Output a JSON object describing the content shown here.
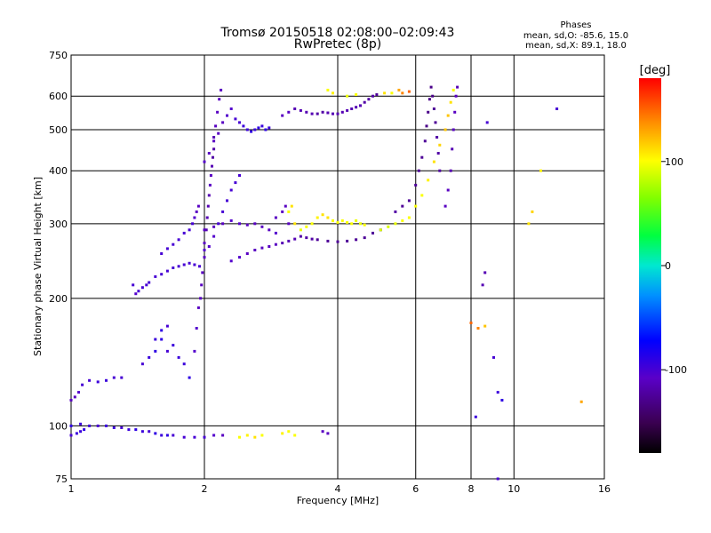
{
  "title": "Tromsø 20150518 02:08:00–02:09:43",
  "subtitle": "RwPretec (8p)",
  "stats": {
    "heading": "Phases",
    "line_o": "mean, sd,O: -85.6, 15.0",
    "line_x": "mean, sd,X: 89.1, 18.0"
  },
  "xlabel": "Frequency [MHz]",
  "ylabel": "Stationary phase Virtual Height [km]",
  "colorbar": {
    "label": "[deg]",
    "ticks": [
      {
        "value": 100,
        "label": "100"
      },
      {
        "value": 0,
        "label": "0"
      },
      {
        "value": -100,
        "label": "-100"
      }
    ],
    "range": [
      -180,
      180
    ]
  },
  "chart_data": {
    "type": "scatter",
    "x_scale": "log2",
    "y_scale": "log",
    "xlim": [
      1,
      16
    ],
    "ylim": [
      75,
      750
    ],
    "x_ticks": [
      {
        "value": 1,
        "label": "1"
      },
      {
        "value": 2,
        "label": "2"
      },
      {
        "value": 4,
        "label": "4"
      },
      {
        "value": 6,
        "label": "6"
      },
      {
        "value": 8,
        "label": "8"
      },
      {
        "value": 10,
        "label": "10"
      },
      {
        "value": 16,
        "label": "16"
      }
    ],
    "y_ticks": [
      {
        "value": 75,
        "label": "75"
      },
      {
        "value": 100,
        "label": "100"
      },
      {
        "value": 200,
        "label": "200"
      },
      {
        "value": 300,
        "label": "300"
      },
      {
        "value": 400,
        "label": "400"
      },
      {
        "value": 500,
        "label": "500"
      },
      {
        "value": 600,
        "label": "600"
      },
      {
        "value": 750,
        "label": "750"
      }
    ],
    "grid": true,
    "color_scale": "phase [deg], rainbow from black (-180) through blue, cyan, green, yellow to red (180)",
    "points": [
      [
        1.0,
        115,
        -110
      ],
      [
        1.02,
        117,
        -110
      ],
      [
        1.04,
        120,
        -105
      ],
      [
        1.06,
        125,
        -100
      ],
      [
        1.1,
        128,
        -100
      ],
      [
        1.15,
        127,
        -95
      ],
      [
        1.2,
        128,
        -95
      ],
      [
        1.25,
        130,
        -100
      ],
      [
        1.3,
        130,
        -100
      ],
      [
        1.0,
        100,
        -90
      ],
      [
        1.05,
        101,
        -95
      ],
      [
        1.1,
        100,
        -95
      ],
      [
        1.15,
        100,
        -100
      ],
      [
        1.2,
        100,
        -95
      ],
      [
        1.25,
        99,
        -95
      ],
      [
        1.3,
        99,
        -100
      ],
      [
        1.35,
        98,
        -95
      ],
      [
        1.4,
        98,
        -90
      ],
      [
        1.45,
        97,
        -95
      ],
      [
        1.5,
        97,
        -100
      ],
      [
        1.55,
        96,
        -90
      ],
      [
        1.6,
        95,
        -95
      ],
      [
        1.65,
        95,
        -90
      ],
      [
        1.7,
        95,
        -100
      ],
      [
        1.8,
        94,
        -100
      ],
      [
        1.9,
        94,
        -100
      ],
      [
        2.0,
        94,
        -100
      ],
      [
        1.0,
        95,
        -100
      ],
      [
        1.03,
        96,
        -95
      ],
      [
        1.05,
        97,
        -95
      ],
      [
        1.07,
        98,
        -90
      ],
      [
        1.45,
        140,
        -100
      ],
      [
        1.5,
        145,
        -95
      ],
      [
        1.55,
        150,
        -90
      ],
      [
        1.6,
        160,
        -90
      ],
      [
        1.65,
        150,
        -100
      ],
      [
        1.7,
        155,
        -95
      ],
      [
        1.75,
        145,
        -95
      ],
      [
        1.8,
        140,
        -95
      ],
      [
        1.85,
        130,
        -90
      ],
      [
        1.55,
        160,
        -95
      ],
      [
        1.6,
        168,
        -90
      ],
      [
        1.65,
        172,
        -100
      ],
      [
        1.38,
        215,
        -100
      ],
      [
        1.4,
        205,
        -105
      ],
      [
        1.42,
        208,
        -100
      ],
      [
        1.45,
        212,
        -100
      ],
      [
        1.48,
        215,
        -100
      ],
      [
        1.5,
        218,
        -100
      ],
      [
        1.55,
        225,
        -100
      ],
      [
        1.6,
        228,
        -100
      ],
      [
        1.65,
        232,
        -100
      ],
      [
        1.7,
        236,
        -100
      ],
      [
        1.75,
        238,
        -100
      ],
      [
        1.8,
        240,
        -100
      ],
      [
        1.85,
        242,
        -100
      ],
      [
        1.9,
        240,
        -100
      ],
      [
        1.95,
        238,
        -100
      ],
      [
        1.6,
        255,
        -100
      ],
      [
        1.65,
        262,
        -100
      ],
      [
        1.7,
        268,
        -100
      ],
      [
        1.75,
        275,
        -100
      ],
      [
        1.8,
        285,
        -100
      ],
      [
        1.85,
        290,
        -100
      ],
      [
        1.88,
        300,
        -100
      ],
      [
        1.9,
        310,
        -105
      ],
      [
        1.92,
        320,
        -110
      ],
      [
        1.94,
        330,
        -110
      ],
      [
        1.9,
        150,
        -105
      ],
      [
        1.92,
        170,
        -105
      ],
      [
        1.94,
        190,
        -110
      ],
      [
        1.96,
        200,
        -110
      ],
      [
        1.97,
        215,
        -110
      ],
      [
        1.98,
        230,
        -110
      ],
      [
        2.0,
        250,
        -110
      ],
      [
        2.0,
        270,
        -110
      ],
      [
        2.02,
        290,
        -115
      ],
      [
        2.03,
        310,
        -115
      ],
      [
        2.04,
        330,
        -115
      ],
      [
        2.05,
        350,
        -115
      ],
      [
        2.06,
        370,
        -110
      ],
      [
        2.07,
        390,
        -110
      ],
      [
        2.08,
        410,
        -115
      ],
      [
        2.09,
        430,
        -120
      ],
      [
        2.1,
        450,
        -120
      ],
      [
        2.1,
        480,
        -115
      ],
      [
        2.12,
        510,
        -110
      ],
      [
        2.14,
        550,
        -110
      ],
      [
        2.16,
        590,
        -110
      ],
      [
        2.18,
        620,
        -110
      ],
      [
        2.0,
        260,
        -105
      ],
      [
        2.05,
        265,
        -105
      ],
      [
        2.1,
        280,
        -105
      ],
      [
        2.15,
        300,
        -100
      ],
      [
        2.2,
        320,
        -100
      ],
      [
        2.25,
        340,
        -100
      ],
      [
        2.3,
        360,
        -100
      ],
      [
        2.35,
        375,
        -100
      ],
      [
        2.4,
        390,
        -100
      ],
      [
        2.0,
        420,
        -105
      ],
      [
        2.05,
        440,
        -110
      ],
      [
        2.1,
        470,
        -110
      ],
      [
        2.15,
        490,
        -110
      ],
      [
        2.2,
        520,
        -110
      ],
      [
        2.25,
        540,
        -105
      ],
      [
        2.3,
        560,
        -105
      ],
      [
        2.35,
        530,
        -100
      ],
      [
        2.4,
        520,
        -100
      ],
      [
        2.45,
        510,
        -95
      ],
      [
        2.5,
        500,
        -95
      ],
      [
        2.55,
        495,
        -90
      ],
      [
        2.6,
        500,
        -95
      ],
      [
        2.65,
        505,
        -90
      ],
      [
        2.7,
        510,
        -95
      ],
      [
        2.75,
        500,
        -90
      ],
      [
        2.8,
        505,
        -95
      ],
      [
        2.0,
        290,
        -110
      ],
      [
        2.1,
        295,
        -110
      ],
      [
        2.2,
        300,
        -110
      ],
      [
        2.3,
        305,
        -105
      ],
      [
        2.4,
        300,
        -105
      ],
      [
        2.5,
        298,
        -110
      ],
      [
        2.6,
        300,
        -110
      ],
      [
        2.7,
        295,
        -110
      ],
      [
        2.8,
        290,
        -110
      ],
      [
        2.9,
        285,
        -105
      ],
      [
        2.3,
        245,
        -105
      ],
      [
        2.4,
        250,
        -105
      ],
      [
        2.5,
        255,
        -110
      ],
      [
        2.6,
        260,
        -110
      ],
      [
        2.7,
        263,
        -110
      ],
      [
        2.8,
        265,
        -110
      ],
      [
        2.9,
        268,
        -110
      ],
      [
        3.0,
        270,
        -115
      ],
      [
        3.1,
        273,
        -115
      ],
      [
        3.2,
        276,
        -115
      ],
      [
        3.3,
        280,
        -120
      ],
      [
        3.4,
        278,
        -120
      ],
      [
        3.5,
        276,
        -120
      ],
      [
        3.6,
        275,
        -125
      ],
      [
        3.8,
        273,
        -125
      ],
      [
        4.0,
        272,
        -125
      ],
      [
        4.2,
        273,
        -125
      ],
      [
        4.4,
        275,
        -125
      ],
      [
        4.6,
        278,
        -125
      ],
      [
        4.8,
        285,
        -125
      ],
      [
        5.0,
        290,
        -125
      ],
      [
        2.9,
        310,
        -110
      ],
      [
        3.0,
        320,
        -110
      ],
      [
        3.05,
        330,
        -110
      ],
      [
        3.1,
        300,
        -110
      ],
      [
        3.0,
        540,
        -110
      ],
      [
        3.1,
        550,
        -110
      ],
      [
        3.2,
        560,
        -115
      ],
      [
        3.3,
        555,
        -115
      ],
      [
        3.4,
        550,
        -115
      ],
      [
        3.5,
        545,
        -115
      ],
      [
        3.6,
        545,
        -120
      ],
      [
        3.7,
        550,
        -120
      ],
      [
        3.8,
        548,
        -115
      ],
      [
        3.9,
        545,
        -115
      ],
      [
        4.0,
        545,
        -115
      ],
      [
        4.1,
        550,
        -115
      ],
      [
        4.2,
        555,
        -115
      ],
      [
        4.3,
        560,
        -115
      ],
      [
        4.4,
        565,
        -115
      ],
      [
        4.5,
        570,
        -115
      ],
      [
        4.6,
        580,
        -120
      ],
      [
        4.7,
        590,
        -120
      ],
      [
        4.8,
        600,
        -120
      ],
      [
        4.9,
        605,
        -125
      ],
      [
        3.8,
        620,
        100
      ],
      [
        3.9,
        610,
        105
      ],
      [
        4.2,
        600,
        95
      ],
      [
        4.4,
        605,
        100
      ],
      [
        5.1,
        610,
        110
      ],
      [
        5.3,
        610,
        100
      ],
      [
        5.5,
        620,
        130
      ],
      [
        5.6,
        610,
        140
      ],
      [
        5.8,
        615,
        150
      ],
      [
        3.1,
        320,
        100
      ],
      [
        3.15,
        330,
        110
      ],
      [
        3.2,
        300,
        110
      ],
      [
        3.3,
        290,
        95
      ],
      [
        3.4,
        295,
        100
      ],
      [
        3.5,
        300,
        100
      ],
      [
        3.6,
        310,
        105
      ],
      [
        3.7,
        315,
        110
      ],
      [
        3.8,
        310,
        110
      ],
      [
        3.9,
        305,
        100
      ],
      [
        4.0,
        302,
        100
      ],
      [
        4.1,
        305,
        100
      ],
      [
        4.2,
        302,
        100
      ],
      [
        4.3,
        300,
        100
      ],
      [
        4.4,
        305,
        95
      ],
      [
        4.5,
        300,
        95
      ],
      [
        4.6,
        298,
        100
      ],
      [
        5.0,
        290,
        90
      ],
      [
        5.2,
        295,
        90
      ],
      [
        5.4,
        300,
        95
      ],
      [
        5.6,
        305,
        100
      ],
      [
        5.8,
        310,
        100
      ],
      [
        6.0,
        330,
        100
      ],
      [
        6.2,
        350,
        100
      ],
      [
        6.4,
        380,
        105
      ],
      [
        6.6,
        420,
        110
      ],
      [
        6.8,
        460,
        115
      ],
      [
        7.0,
        500,
        120
      ],
      [
        7.1,
        540,
        120
      ],
      [
        7.2,
        580,
        110
      ],
      [
        7.3,
        620,
        100
      ],
      [
        5.4,
        320,
        -120
      ],
      [
        5.6,
        330,
        -125
      ],
      [
        5.8,
        340,
        -125
      ],
      [
        6.0,
        370,
        -125
      ],
      [
        6.1,
        400,
        -125
      ],
      [
        6.2,
        430,
        -125
      ],
      [
        6.3,
        470,
        -125
      ],
      [
        6.35,
        510,
        -130
      ],
      [
        6.4,
        550,
        -130
      ],
      [
        6.45,
        590,
        -130
      ],
      [
        6.5,
        630,
        -130
      ],
      [
        6.55,
        600,
        -130
      ],
      [
        6.6,
        560,
        -125
      ],
      [
        6.65,
        520,
        -125
      ],
      [
        6.7,
        480,
        -120
      ],
      [
        6.75,
        440,
        -120
      ],
      [
        6.8,
        400,
        -120
      ],
      [
        7.0,
        330,
        -110
      ],
      [
        7.1,
        360,
        -110
      ],
      [
        7.2,
        400,
        -115
      ],
      [
        7.25,
        450,
        -115
      ],
      [
        7.3,
        500,
        -110
      ],
      [
        7.35,
        550,
        -110
      ],
      [
        7.4,
        600,
        -110
      ],
      [
        7.45,
        630,
        -115
      ],
      [
        2.4,
        94,
        100
      ],
      [
        2.5,
        95,
        105
      ],
      [
        2.6,
        94,
        110
      ],
      [
        2.7,
        95,
        100
      ],
      [
        3.0,
        96,
        105
      ],
      [
        3.1,
        97,
        100
      ],
      [
        3.2,
        95,
        100
      ],
      [
        2.2,
        95,
        -110
      ],
      [
        2.1,
        95,
        -105
      ],
      [
        3.7,
        97,
        -110
      ],
      [
        3.8,
        96,
        -110
      ],
      [
        8.0,
        175,
        150
      ],
      [
        8.3,
        170,
        140
      ],
      [
        8.6,
        172,
        120
      ],
      [
        9.0,
        145,
        -100
      ],
      [
        9.2,
        120,
        -95
      ],
      [
        8.2,
        105,
        -95
      ],
      [
        8.6,
        230,
        -115
      ],
      [
        8.5,
        215,
        -115
      ],
      [
        10.8,
        300,
        110
      ],
      [
        11.0,
        320,
        115
      ],
      [
        11.5,
        400,
        105
      ],
      [
        12.5,
        560,
        -100
      ],
      [
        14.2,
        114,
        130
      ],
      [
        9.4,
        115,
        -90
      ],
      [
        8.7,
        520,
        -100
      ],
      [
        9.2,
        75,
        -100
      ]
    ]
  }
}
